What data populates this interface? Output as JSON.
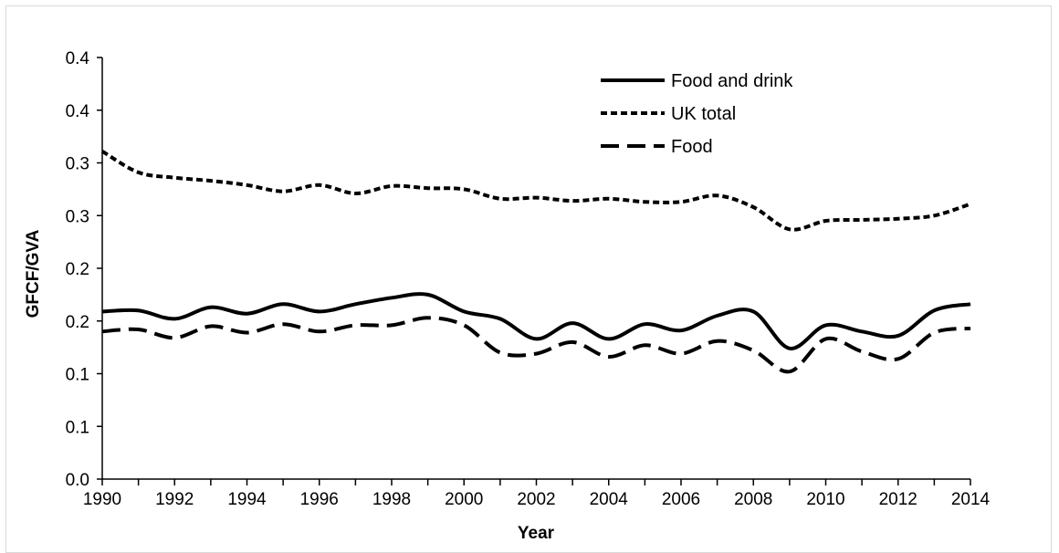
{
  "chart_data": {
    "type": "line",
    "title": "",
    "xlabel": "Year",
    "ylabel": "GFCF/GVA",
    "x": [
      1990,
      1991,
      1992,
      1993,
      1994,
      1995,
      1996,
      1997,
      1998,
      1999,
      2000,
      2001,
      2002,
      2003,
      2004,
      2005,
      2006,
      2007,
      2008,
      2009,
      2010,
      2011,
      2012,
      2013,
      2014
    ],
    "xlim": [
      1990,
      2014
    ],
    "x_tick_values": [
      1990,
      1992,
      1994,
      1996,
      1998,
      2000,
      2002,
      2004,
      2006,
      2008,
      2010,
      2012,
      2014
    ],
    "x_tick_labels": [
      "1990",
      "1992",
      "1994",
      "1996",
      "1998",
      "2000",
      "2002",
      "2004",
      "2006",
      "2008",
      "2010",
      "2012",
      "2014"
    ],
    "ylim": [
      0.0,
      0.4
    ],
    "y_tick_values": [
      0.0,
      0.05,
      0.1,
      0.15,
      0.2,
      0.25,
      0.3,
      0.35,
      0.4
    ],
    "y_tick_labels": [
      "0.0",
      "0.1",
      "0.1",
      "0.2",
      "0.2",
      "0.3",
      "0.3",
      "0.4",
      "0.4"
    ],
    "grid": false,
    "legend_position": "top-right",
    "series": [
      {
        "name": "Food and drink",
        "style": "solid",
        "values": [
          0.159,
          0.16,
          0.152,
          0.163,
          0.157,
          0.166,
          0.159,
          0.166,
          0.172,
          0.175,
          0.159,
          0.152,
          0.133,
          0.148,
          0.133,
          0.147,
          0.141,
          0.155,
          0.159,
          0.124,
          0.146,
          0.14,
          0.136,
          0.16,
          0.166
        ]
      },
      {
        "name": "UK total",
        "style": "dotted",
        "values": [
          0.311,
          0.291,
          0.286,
          0.283,
          0.279,
          0.273,
          0.279,
          0.271,
          0.278,
          0.276,
          0.275,
          0.266,
          0.267,
          0.264,
          0.266,
          0.263,
          0.263,
          0.269,
          0.258,
          0.237,
          0.245,
          0.246,
          0.247,
          0.25,
          0.261
        ]
      },
      {
        "name": "Food",
        "style": "dashed",
        "values": [
          0.14,
          0.142,
          0.134,
          0.145,
          0.139,
          0.147,
          0.14,
          0.146,
          0.146,
          0.153,
          0.146,
          0.12,
          0.119,
          0.13,
          0.116,
          0.127,
          0.119,
          0.131,
          0.122,
          0.102,
          0.133,
          0.121,
          0.114,
          0.139,
          0.143
        ]
      }
    ]
  },
  "colors": {
    "line": "#000000",
    "axis": "#000000",
    "frame": "#d9d9d9"
  }
}
